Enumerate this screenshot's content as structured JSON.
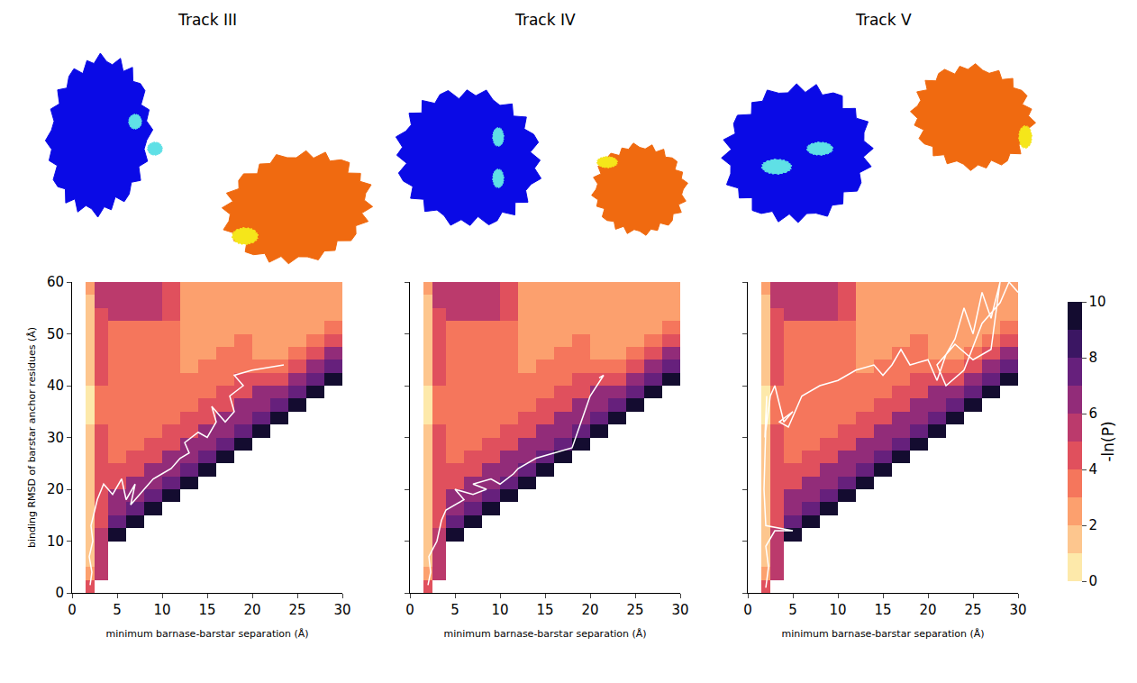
{
  "chart_data": {
    "type": "heatmap",
    "x_label": "minimum barnase-barstar separation (Å)",
    "y_label": "binding RMSD of barstar anchor residues (Å)",
    "xlim": [
      0,
      30
    ],
    "xticks": [
      0,
      5,
      10,
      15,
      20,
      25,
      30
    ],
    "ylim": [
      0,
      60
    ],
    "yticks": [
      0,
      10,
      20,
      30,
      40,
      50,
      60
    ],
    "x_edges": [
      0,
      1.5,
      2.5,
      4,
      6,
      8,
      10,
      12,
      14,
      16,
      18,
      20,
      22,
      24,
      26,
      28,
      30
    ],
    "y_edges": [
      0,
      2.5,
      5,
      7.5,
      10,
      12.5,
      15,
      17.5,
      20,
      22.5,
      25,
      27.5,
      30,
      32.5,
      35,
      37.5,
      40,
      42.5,
      45,
      47.5,
      50,
      52.5,
      55,
      57.5,
      60
    ],
    "z_by_x_bin": [
      [
        null,
        null,
        null,
        null,
        null,
        null,
        null,
        null,
        null,
        null,
        null,
        null,
        null,
        null,
        null,
        null,
        null,
        null,
        null,
        null,
        null,
        null,
        null,
        null
      ],
      [
        4,
        2,
        1.5,
        1.5,
        1.5,
        1,
        1,
        1,
        1,
        1,
        1,
        1,
        1,
        0.5,
        0.5,
        0.5,
        1,
        1,
        1,
        1,
        1,
        1.5,
        1.5,
        2
      ],
      [
        null,
        5,
        5,
        5,
        5,
        4.5,
        4.5,
        4.5,
        4.5,
        4,
        4,
        4,
        4,
        3.5,
        3.5,
        3.5,
        4,
        4,
        4,
        4,
        4.5,
        4.5,
        5,
        5
      ],
      [
        null,
        null,
        null,
        null,
        9,
        7.5,
        6,
        6,
        4.5,
        4.5,
        3.5,
        3.5,
        3.5,
        3.5,
        3.5,
        3.5,
        3.5,
        3.5,
        3.5,
        3.5,
        3.5,
        5,
        5,
        5
      ],
      [
        null,
        null,
        null,
        null,
        null,
        9,
        7.5,
        6,
        6,
        4.5,
        4.5,
        3.5,
        3.5,
        3.5,
        3.5,
        3.5,
        3.5,
        3.5,
        3.5,
        3.5,
        3.5,
        5,
        5,
        5
      ],
      [
        null,
        null,
        null,
        null,
        null,
        null,
        9,
        7.5,
        6,
        6,
        4.5,
        4.5,
        3.5,
        3.5,
        3.5,
        3.5,
        3.5,
        3.5,
        3.5,
        3.5,
        3.5,
        5,
        5,
        5
      ],
      [
        null,
        null,
        null,
        null,
        null,
        null,
        null,
        9,
        7.5,
        6,
        6,
        4.5,
        4.5,
        3,
        3,
        3,
        3,
        3,
        3,
        3,
        3,
        4,
        4,
        4
      ],
      [
        null,
        null,
        null,
        null,
        null,
        null,
        null,
        null,
        9,
        7.5,
        6,
        6,
        4.5,
        4.5,
        3,
        3,
        3,
        2.5,
        2.5,
        2.5,
        2.5,
        2.5,
        2.5,
        2.5
      ],
      [
        null,
        null,
        null,
        null,
        null,
        null,
        null,
        null,
        null,
        9,
        7.5,
        6,
        6,
        4.5,
        4.5,
        3,
        3,
        3,
        2,
        2,
        2,
        2,
        2,
        2
      ],
      [
        null,
        null,
        null,
        null,
        null,
        null,
        null,
        null,
        null,
        null,
        9,
        7.5,
        6,
        6,
        4.5,
        4.5,
        3,
        3,
        3,
        2,
        2,
        2,
        2,
        2
      ],
      [
        null,
        null,
        null,
        null,
        null,
        null,
        null,
        null,
        null,
        null,
        null,
        9,
        7.5,
        6,
        6,
        4.5,
        4.5,
        3,
        3,
        3,
        2,
        2,
        2,
        2
      ],
      [
        null,
        null,
        null,
        null,
        null,
        null,
        null,
        null,
        null,
        null,
        null,
        null,
        9,
        7.5,
        6,
        6,
        4.5,
        3,
        2.5,
        2.5,
        2.5,
        2.5,
        2.5,
        2.5
      ],
      [
        null,
        null,
        null,
        null,
        null,
        null,
        null,
        null,
        null,
        null,
        null,
        null,
        null,
        9,
        7.5,
        6,
        4.5,
        3,
        2,
        2,
        2,
        2,
        2,
        2
      ],
      [
        null,
        null,
        null,
        null,
        null,
        null,
        null,
        null,
        null,
        null,
        null,
        null,
        null,
        null,
        9,
        7.5,
        6,
        4.5,
        3,
        2,
        2,
        2,
        2,
        2
      ],
      [
        null,
        null,
        null,
        null,
        null,
        null,
        null,
        null,
        null,
        null,
        null,
        null,
        null,
        null,
        null,
        9,
        7.5,
        6,
        4.5,
        3,
        2,
        2,
        2,
        2
      ],
      [
        null,
        null,
        null,
        null,
        null,
        null,
        null,
        null,
        null,
        null,
        null,
        null,
        null,
        null,
        null,
        null,
        9,
        7.5,
        6,
        4.5,
        3,
        2,
        2,
        2
      ]
    ],
    "colorbar": {
      "title": "-ln(P)",
      "range": [
        0,
        10
      ],
      "ticks": [
        0,
        2,
        4,
        6,
        8,
        10
      ]
    },
    "panels": [
      {
        "title": "Track III",
        "color": "#ffffff",
        "trajectory": {
          "x": [
            2,
            2.2,
            1.9,
            2.3,
            2.1,
            2.8,
            3.5,
            4.5,
            5.5,
            6,
            7,
            6.5,
            8,
            9,
            10,
            11,
            12,
            13,
            12.5,
            14,
            15,
            16,
            15.5,
            17,
            18,
            17.5,
            19,
            18,
            20,
            22,
            23.5
          ],
          "y": [
            1.5,
            4,
            7,
            10,
            13,
            18,
            21,
            19,
            22,
            18,
            21,
            17,
            20,
            22,
            23,
            24,
            26,
            27,
            29,
            31,
            30,
            33,
            36,
            33,
            35,
            38,
            40,
            42,
            43,
            43.5,
            44
          ]
        }
      },
      {
        "title": "Track IV",
        "color": "#ffffff",
        "trajectory": {
          "x": [
            2,
            2.3,
            2.1,
            3,
            3.5,
            4,
            6,
            5,
            7,
            8.5,
            7,
            9,
            10,
            11.5,
            12,
            14,
            16,
            18,
            19,
            20,
            21.5,
            21
          ],
          "y": [
            1.5,
            4,
            7,
            10,
            14,
            16,
            18,
            20,
            19,
            20,
            21,
            22,
            21,
            23,
            24,
            26,
            27,
            28,
            33,
            38,
            42,
            41.5
          ]
        }
      },
      {
        "title": "Track V",
        "color": "#ffffff",
        "trajectory": {
          "x": [
            2,
            2.3,
            2,
            3,
            5,
            2,
            1.8,
            2,
            2.1,
            1.9,
            2.5,
            3,
            4,
            5,
            3.5,
            4.5,
            6,
            8,
            10,
            12,
            14,
            15,
            16,
            17,
            18,
            20,
            21,
            22,
            23,
            24,
            25,
            26,
            27,
            28,
            27,
            25,
            23,
            21,
            22,
            24,
            26,
            28,
            29,
            30
          ],
          "y": [
            1,
            5,
            9,
            12,
            12,
            13,
            20,
            30,
            38,
            30,
            38,
            40,
            33,
            35,
            33,
            32,
            38,
            40,
            41,
            43,
            44,
            42,
            44,
            47,
            44,
            45,
            41,
            46,
            49,
            55,
            50,
            58,
            53,
            60,
            47,
            45,
            48,
            44,
            40,
            43,
            52,
            56,
            60,
            58
          ]
        }
      }
    ]
  }
}
